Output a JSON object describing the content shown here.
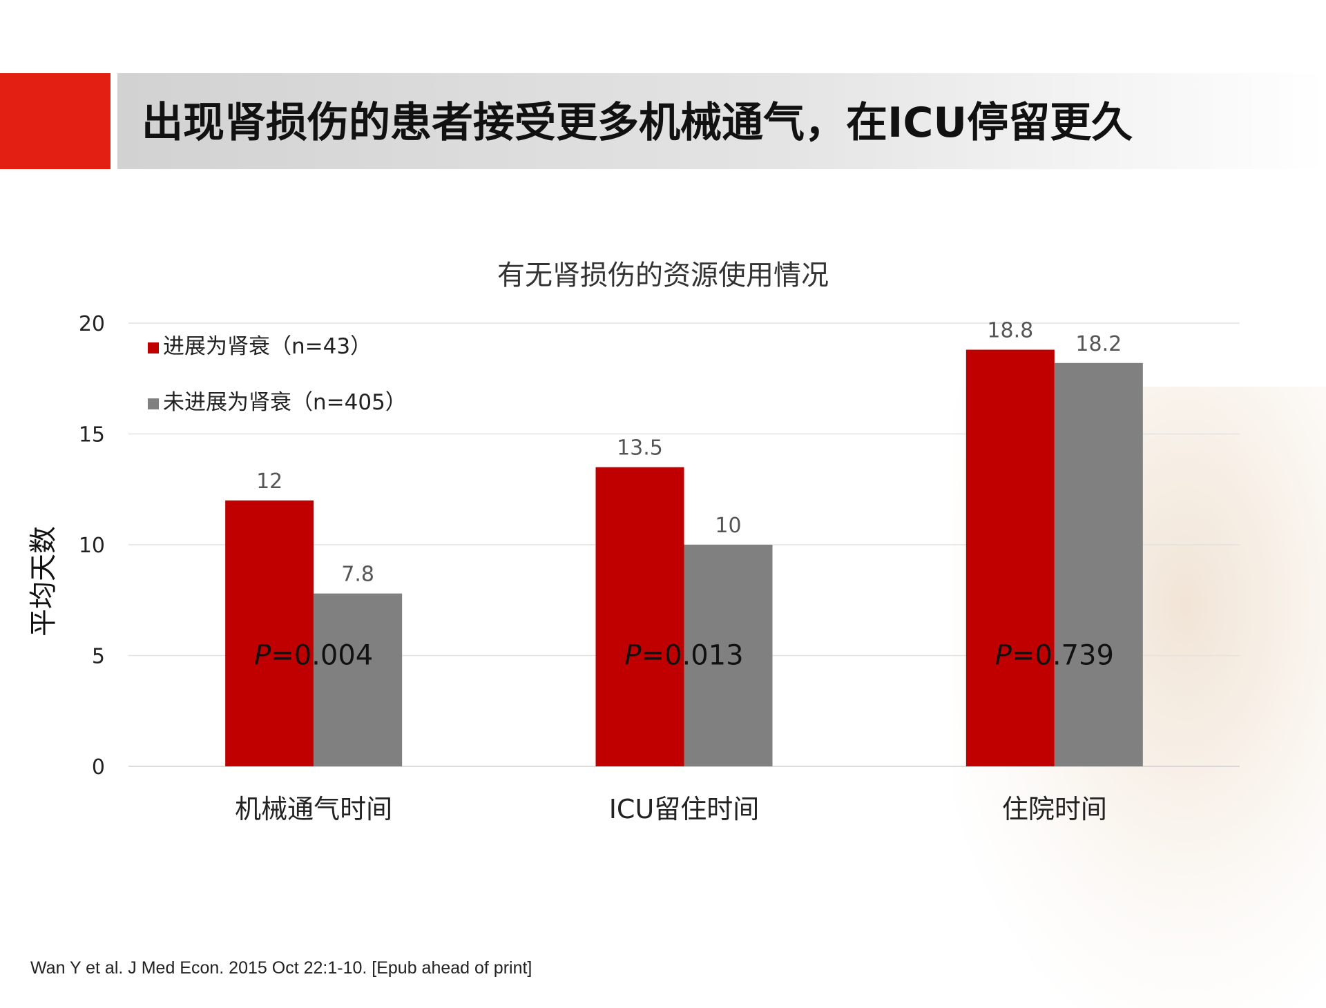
{
  "slide": {
    "title": "出现肾损伤的患者接受更多机械通气，在ICU停留更久",
    "citation": "Wan Y et al. J Med Econ. 2015 Oct 22:1-10. [Epub ahead  of print]"
  },
  "colors": {
    "accent": "#e31e13",
    "series_1": "#c00000",
    "series_2": "#808080"
  },
  "chart_data": {
    "type": "bar",
    "title": "有无肾损伤的资源使用情况",
    "ylabel": "平均天数",
    "xlabel": "",
    "categories": [
      "机械通气时间",
      "ICU留住时间",
      "住院时间"
    ],
    "series": [
      {
        "name": "进展为肾衰（n=43）",
        "values": [
          12,
          13.5,
          18.8
        ],
        "labels": [
          "12",
          "13.5",
          "18.8"
        ]
      },
      {
        "name": "未进展为肾衰（n=405）",
        "values": [
          7.8,
          10,
          18.2
        ],
        "labels": [
          "7.8",
          "10",
          "18.2"
        ]
      }
    ],
    "ylim": [
      0,
      20
    ],
    "yticks": [
      0,
      5,
      10,
      15,
      20
    ],
    "grid": true,
    "legend": "top-left",
    "annotations": [
      {
        "category": "机械通气时间",
        "prefix": "P",
        "text": "=0.004"
      },
      {
        "category": "ICU留住时间",
        "prefix": "P",
        "text": "=0.013"
      },
      {
        "category": "住院时间",
        "prefix": "P",
        "text": "=0.739"
      }
    ]
  }
}
